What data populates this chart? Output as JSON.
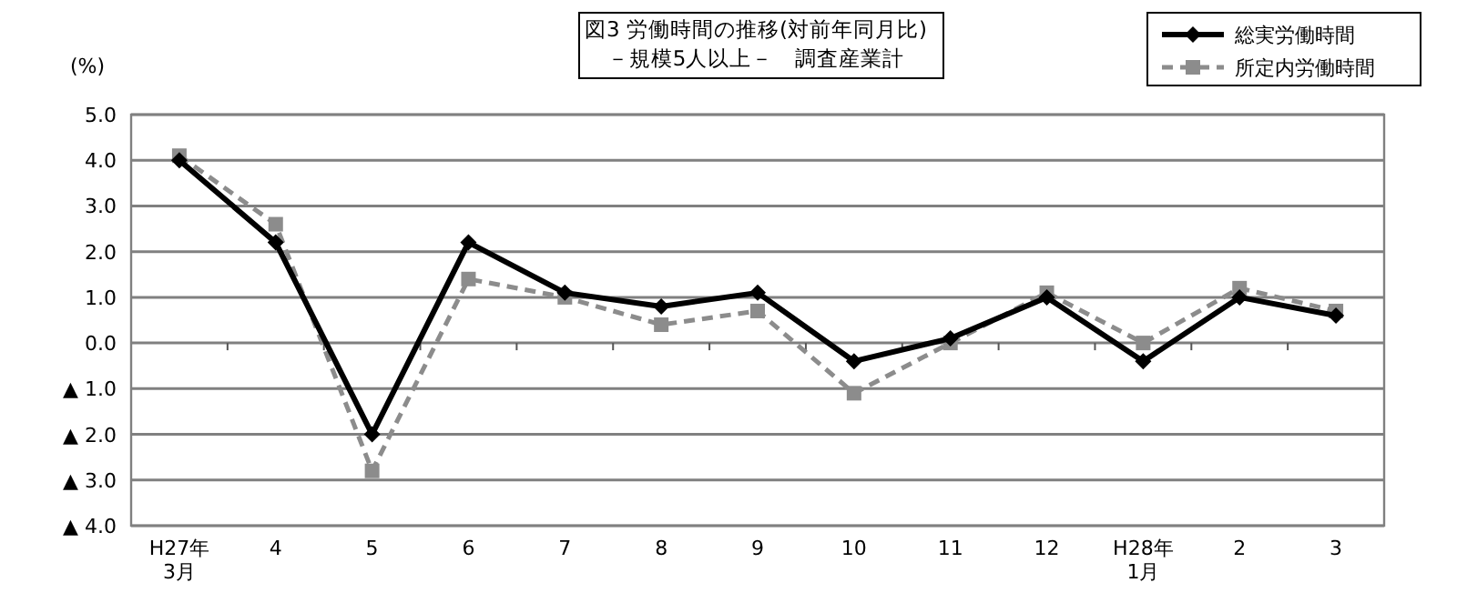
{
  "chart_data": {
    "type": "line",
    "title": "図3 労働時間の推移(対前年同月比)",
    "subtitle": "－規模5人以上－　調査産業計",
    "ylabel": "(%)",
    "categories": [
      "H27年\n3月",
      "4",
      "5",
      "6",
      "7",
      "8",
      "9",
      "10",
      "11",
      "12",
      "H28年\n1月",
      "2",
      "3"
    ],
    "series": [
      {
        "name": "総実労働時間",
        "color": "#000000",
        "marker": "diamond",
        "line_style": "solid",
        "values": [
          4.0,
          2.2,
          -2.0,
          2.2,
          1.1,
          0.8,
          1.1,
          -0.4,
          0.1,
          1.0,
          -0.4,
          1.0,
          0.6
        ]
      },
      {
        "name": "所定内労働時間",
        "color": "#8c8c8c",
        "marker": "square",
        "line_style": "dashed",
        "values": [
          4.1,
          2.6,
          -2.8,
          1.4,
          1.0,
          0.4,
          0.7,
          -1.1,
          0.0,
          1.1,
          0.0,
          1.2,
          0.7
        ]
      }
    ],
    "ylim": [
      -4,
      5
    ],
    "yticks": [
      {
        "value": 5,
        "label": "5.0"
      },
      {
        "value": 4,
        "label": "4.0"
      },
      {
        "value": 3,
        "label": "3.0"
      },
      {
        "value": 2,
        "label": "2.0"
      },
      {
        "value": 1,
        "label": "1.0"
      },
      {
        "value": 0,
        "label": "0.0"
      },
      {
        "value": -1,
        "label": "▲ 1.0"
      },
      {
        "value": -2,
        "label": "▲ 2.0"
      },
      {
        "value": -3,
        "label": "▲ 3.0"
      },
      {
        "value": -4,
        "label": "▲ 4.0"
      }
    ],
    "grid": "y",
    "legend": "top right"
  }
}
